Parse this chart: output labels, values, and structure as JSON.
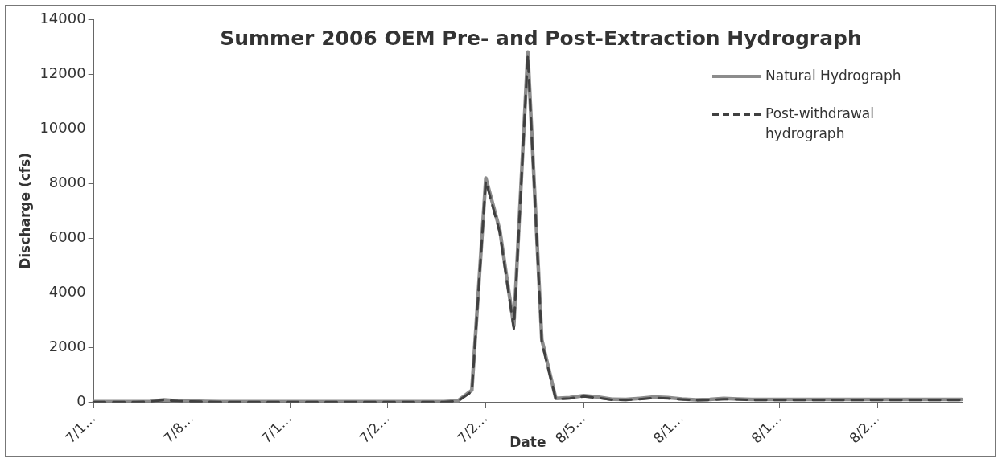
{
  "chart_data": {
    "type": "line",
    "title": "Summer 2006 OEM Pre- and Post-Extraction Hydrograph",
    "xlabel": "Date",
    "ylabel": "Discharge (cfs)",
    "categories": [
      "7/1…",
      null,
      null,
      null,
      null,
      null,
      null,
      "7/8…",
      null,
      null,
      null,
      null,
      null,
      null,
      "7/1…",
      null,
      null,
      null,
      null,
      null,
      null,
      "7/2…",
      null,
      null,
      null,
      null,
      null,
      null,
      "7/2…",
      null,
      null,
      null,
      null,
      null,
      null,
      "8/5…",
      null,
      null,
      null,
      null,
      null,
      null,
      "8/1…",
      null,
      null,
      null,
      null,
      null,
      null,
      "8/1…",
      null,
      null,
      null,
      null,
      null,
      null,
      "8/2…",
      null,
      null,
      null,
      null,
      null,
      null
    ],
    "ylim": [
      0,
      14000
    ],
    "yticks": [
      0,
      2000,
      4000,
      6000,
      8000,
      10000,
      12000,
      14000
    ],
    "grid": false,
    "legend": "top right",
    "marker": "none",
    "series": [
      {
        "name": "Natural Hydrograph",
        "color": "#8c8c8c",
        "line_style": "solid",
        "values": [
          30,
          30,
          30,
          30,
          40,
          100,
          60,
          50,
          40,
          30,
          30,
          30,
          30,
          30,
          30,
          30,
          30,
          30,
          30,
          30,
          30,
          30,
          30,
          30,
          30,
          30,
          60,
          450,
          8200,
          6300,
          2800,
          12800,
          2300,
          150,
          180,
          250,
          200,
          120,
          110,
          150,
          200,
          180,
          130,
          100,
          110,
          150,
          130,
          110,
          110,
          110,
          110,
          110,
          110,
          110,
          110,
          110,
          110,
          110,
          110,
          110,
          110,
          110,
          110
        ]
      },
      {
        "name": "Post-withdrawal hydrograph",
        "color": "#404040",
        "line_style": "dashed",
        "values": [
          20,
          20,
          20,
          20,
          30,
          90,
          50,
          40,
          30,
          20,
          20,
          20,
          20,
          20,
          20,
          20,
          20,
          20,
          20,
          20,
          20,
          20,
          20,
          20,
          20,
          20,
          50,
          400,
          8100,
          6200,
          2700,
          12700,
          2200,
          120,
          150,
          220,
          170,
          100,
          90,
          120,
          170,
          150,
          110,
          80,
          90,
          120,
          110,
          90,
          90,
          90,
          90,
          90,
          90,
          90,
          90,
          90,
          90,
          90,
          90,
          90,
          90,
          90,
          90
        ]
      }
    ]
  }
}
